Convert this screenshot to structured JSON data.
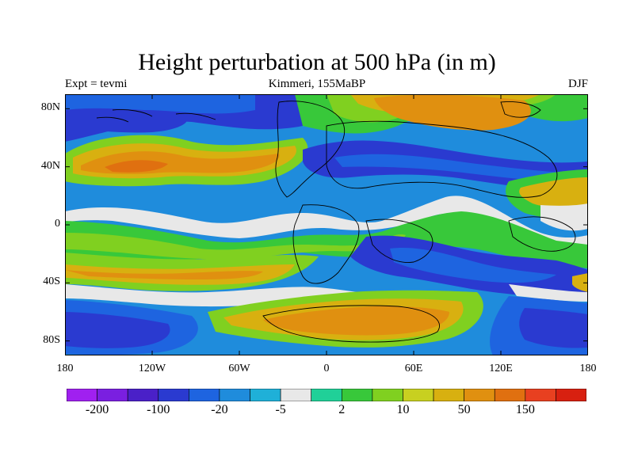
{
  "title": "Height perturbation at 500 hPa (in m)",
  "left_string": "Expt = tevmi",
  "center_string": "Kimmeri, 155MaBP",
  "right_string": "DJF",
  "axes": {
    "x_ticks": [
      "180",
      "120W",
      "60W",
      "0",
      "60E",
      "120E",
      "180"
    ],
    "x_values": [
      -180,
      -120,
      -60,
      0,
      60,
      120,
      180
    ],
    "y_ticks": [
      "80N",
      "40N",
      "0",
      "40S",
      "80S"
    ],
    "y_values": [
      80,
      40,
      0,
      -40,
      -80
    ],
    "lon_range": [
      -180,
      180
    ],
    "lat_range": [
      -90,
      90
    ]
  },
  "colorbar": {
    "labels": [
      "-200",
      "-100",
      "-20",
      "-5",
      "2",
      "10",
      "50",
      "150"
    ],
    "colors": [
      "#a020f0",
      "#7a1fe0",
      "#4a20c8",
      "#2a3ad0",
      "#1e64e0",
      "#1f8cdc",
      "#1fb0d8",
      "#e8e8e8",
      "#20d098",
      "#38c83a",
      "#80d020",
      "#c8d020",
      "#d8b010",
      "#e09010",
      "#e07010",
      "#e84020",
      "#d82010"
    ]
  }
}
